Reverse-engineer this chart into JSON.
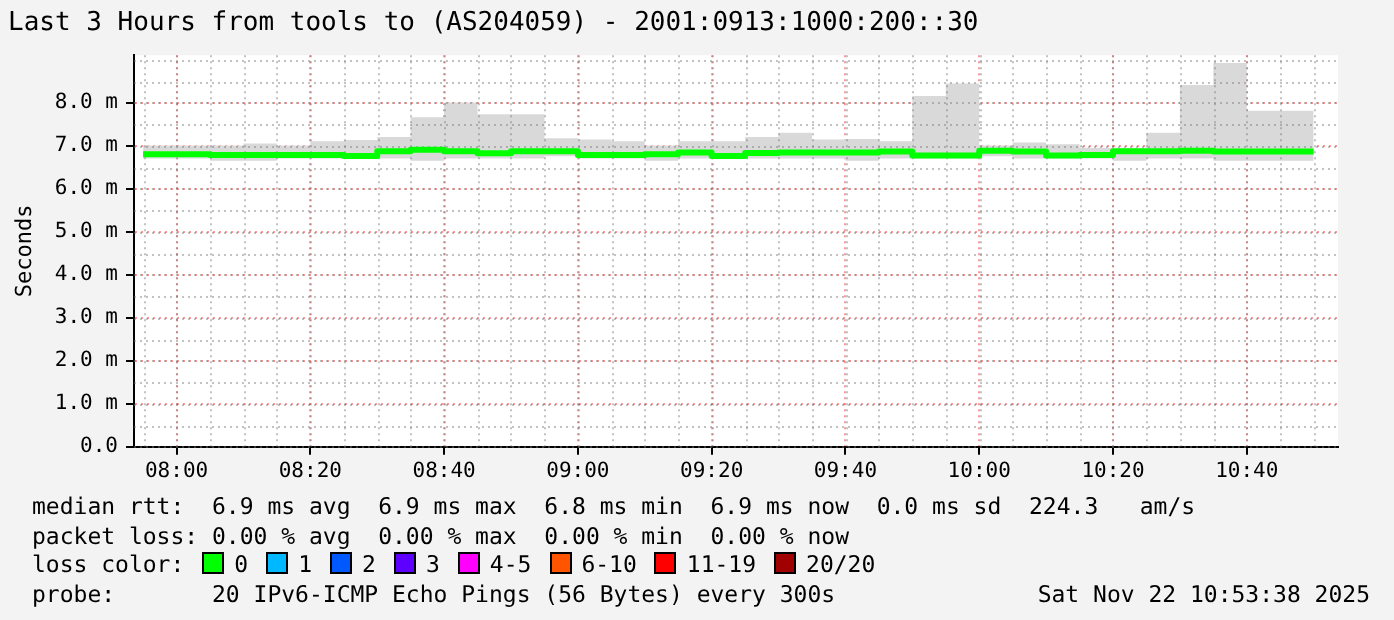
{
  "chart_data": {
    "type": "step",
    "title": "Last 3 Hours from tools to (AS204059) - 2001:0913:1000:200::30",
    "ylabel": "Seconds",
    "x": [
      7.91667,
      8,
      8.08333,
      8.16667,
      8.25,
      8.33333,
      8.41667,
      8.5,
      8.58333,
      8.66667,
      8.75,
      8.83333,
      8.91667,
      9,
      9.08333,
      9.16667,
      9.25,
      9.33333,
      9.41667,
      9.5,
      9.58333,
      9.66667,
      9.75,
      9.83333,
      9.91667,
      10,
      10.08333,
      10.16667,
      10.25,
      10.33333,
      10.41667,
      10.5,
      10.58333,
      10.66667,
      10.75,
      10.83333
    ],
    "series": [
      {
        "color": "#00ff00",
        "values": [
          6.8,
          6.8,
          6.8,
          6.78,
          6.78,
          6.78,
          6.78,
          6.76,
          6.87,
          6.9,
          6.87,
          6.82,
          6.87,
          6.87,
          6.78,
          6.78,
          6.8,
          6.84,
          6.76,
          6.83,
          6.84,
          6.84,
          6.84,
          6.86,
          6.77,
          6.77,
          6.88,
          6.86,
          6.77,
          6.78,
          6.87,
          6.87,
          6.88,
          6.86,
          6.86,
          6.86
        ],
        "lower": [
          6.7,
          6.7,
          6.7,
          6.65,
          6.65,
          6.7,
          6.7,
          6.7,
          6.7,
          6.65,
          6.7,
          6.7,
          6.7,
          6.75,
          6.7,
          6.7,
          6.65,
          6.7,
          6.7,
          6.7,
          6.7,
          6.7,
          6.65,
          6.7,
          6.7,
          6.7,
          6.75,
          6.7,
          6.7,
          6.7,
          6.65,
          6.7,
          6.7,
          6.65,
          6.65,
          6.65
        ],
        "upper": [
          7.05,
          7.0,
          7.0,
          7.0,
          7.05,
          7.0,
          7.1,
          7.13,
          7.2,
          7.66,
          8.0,
          7.73,
          7.73,
          7.17,
          7.14,
          7.1,
          7.0,
          7.1,
          7.1,
          7.2,
          7.3,
          7.14,
          7.15,
          7.1,
          8.15,
          8.44,
          7.0,
          7.07,
          7.03,
          6.95,
          6.95,
          7.3,
          8.41,
          8.92,
          7.81,
          7.81
        ]
      }
    ],
    "xlim": [
      7.894,
      10.894
    ],
    "xticks": [
      {
        "value": 8,
        "label": "08:00"
      },
      {
        "value": 8.33333,
        "label": "08:20"
      },
      {
        "value": 8.66667,
        "label": "08:40"
      },
      {
        "value": 9,
        "label": "09:00"
      },
      {
        "value": 9.33333,
        "label": "09:20"
      },
      {
        "value": 9.66667,
        "label": "09:40"
      },
      {
        "value": 10,
        "label": "10:00"
      },
      {
        "value": 10.33333,
        "label": "10:20"
      },
      {
        "value": 10.66667,
        "label": "10:40"
      }
    ],
    "ylim": [
      0,
      9.1
    ],
    "yticks": [
      {
        "value": 0,
        "label": "0.0"
      },
      {
        "value": 1,
        "label": "1.0 m"
      },
      {
        "value": 2,
        "label": "2.0 m"
      },
      {
        "value": 3,
        "label": "3.0 m"
      },
      {
        "value": 4,
        "label": "4.0 m"
      },
      {
        "value": 5,
        "label": "5.0 m"
      },
      {
        "value": 6,
        "label": "6.0 m"
      },
      {
        "value": 7,
        "label": "7.0 m"
      },
      {
        "value": 8,
        "label": "8.0 m"
      }
    ],
    "grid": true,
    "marker": "none",
    "legend": false,
    "annotations": [
      "median rtt:  6.9 ms avg  6.9 ms max  6.8 ms min  6.9 ms now  0.0 ms sd  224.3   am/s",
      "packet loss: 0.00 % avg  0.00 % max  0.00 % min  0.00 % now",
      "loss color:",
      "0",
      "1",
      "2",
      "3",
      "4-5",
      "6-10",
      "11-19",
      "20/20",
      "probe:       20 IPv6-ICMP Echo Pings (56 Bytes) every 300s",
      "Sat Nov 22 10:53:38 2025"
    ]
  }
}
